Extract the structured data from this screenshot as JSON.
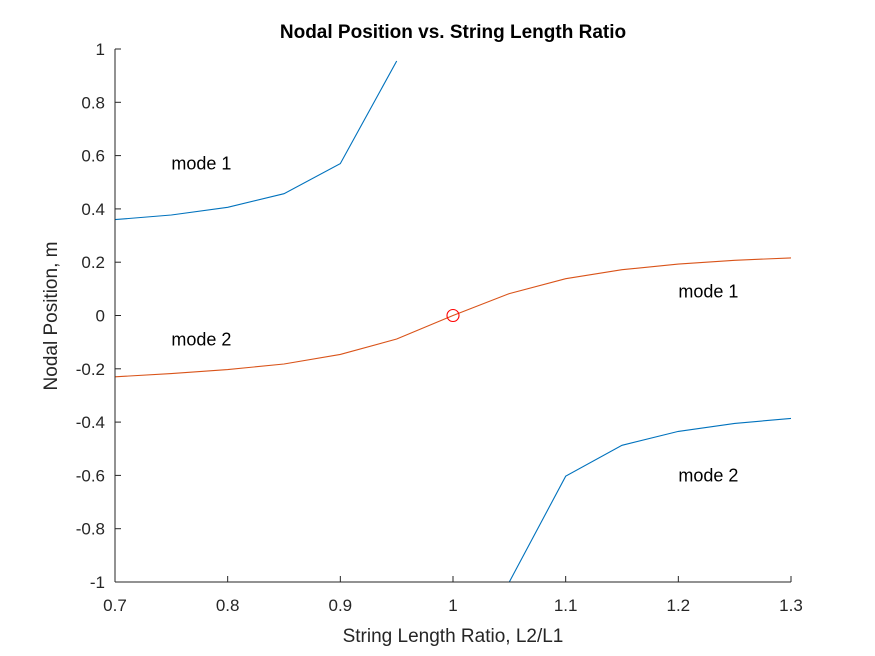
{
  "chart_data": {
    "type": "line",
    "title": "Nodal Position vs. String Length Ratio",
    "xlabel": "String Length Ratio,  L2/L1",
    "ylabel": "Nodal Position,  m",
    "xlim": [
      0.7,
      1.3
    ],
    "ylim": [
      -1,
      1
    ],
    "xticks": [
      0.7,
      0.8,
      0.9,
      1,
      1.1,
      1.2,
      1.3
    ],
    "xtick_labels": [
      "0.7",
      "0.8",
      "0.9",
      "1",
      "1.1",
      "1.2",
      "1.3"
    ],
    "yticks": [
      1,
      0.8,
      0.6,
      0.4,
      0.2,
      0,
      -0.2,
      -0.4,
      -0.6,
      -0.8,
      -1
    ],
    "ytick_labels": [
      "1",
      "0.8",
      "0.6",
      "0.4",
      "0.2",
      "0",
      "-0.2",
      "-0.4",
      "-0.6",
      "-0.8",
      "-1"
    ],
    "grid": false,
    "legend": "none",
    "series": [
      {
        "color": "#0072BD",
        "x": [
          0.7,
          0.75,
          0.8,
          0.85,
          0.9,
          0.95
        ],
        "y": [
          0.36,
          0.377,
          0.406,
          0.457,
          0.57,
          0.955
        ]
      },
      {
        "color": "#D95319",
        "x": [
          0.7,
          0.75,
          0.8,
          0.85,
          0.9,
          0.95,
          1.0,
          1.05,
          1.1,
          1.15,
          1.2,
          1.25,
          1.3
        ],
        "y": [
          -0.23,
          -0.218,
          -0.203,
          -0.182,
          -0.146,
          -0.088,
          0.0,
          0.082,
          0.138,
          0.172,
          0.193,
          0.207,
          0.216
        ]
      },
      {
        "color": "#0072BD",
        "x": [
          1.05,
          1.1,
          1.15,
          1.2,
          1.25,
          1.3
        ],
        "y": [
          -1.0,
          -0.603,
          -0.487,
          -0.435,
          -0.405,
          -0.386
        ]
      }
    ],
    "markers": [
      {
        "x": 1.0,
        "y": 0.0,
        "shape": "circle",
        "color": "#FF0000"
      }
    ],
    "annotations": [
      {
        "text": "mode 1",
        "x": 0.75,
        "y": 0.57
      },
      {
        "text": "mode 2",
        "x": 0.75,
        "y": -0.09
      },
      {
        "text": "mode 1",
        "x": 1.2,
        "y": 0.09
      },
      {
        "text": "mode 2",
        "x": 1.2,
        "y": -0.6
      }
    ]
  }
}
